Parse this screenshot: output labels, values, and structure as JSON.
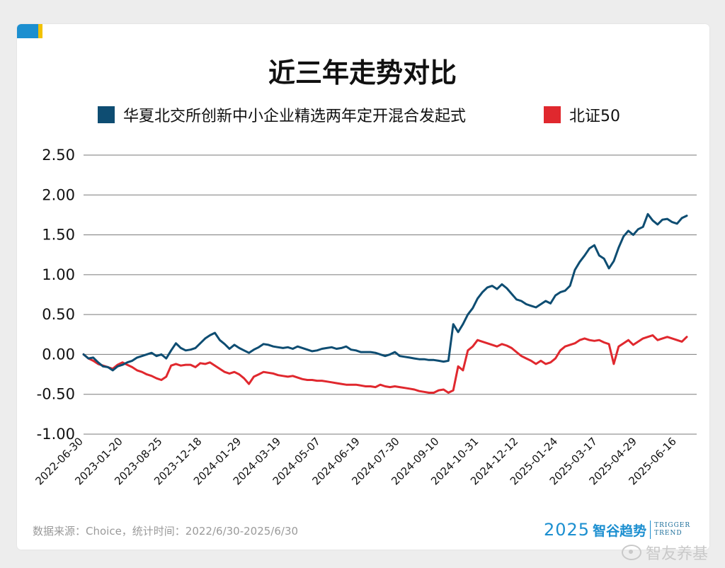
{
  "title": "近三年走势对比",
  "legend": [
    {
      "label": "华夏北交所创新中小企业精选两年定开混合发起式",
      "color": "#0e4d72"
    },
    {
      "label": "北证50",
      "color": "#e0282e"
    }
  ],
  "source": "数据来源：Choice，统计时间：2022/6/30-2025/6/30",
  "brand": {
    "year": "2025",
    "name": "智谷趋势",
    "en_line1": "TRIGGER",
    "en_line2": "TREND"
  },
  "watermark": "智友养基",
  "chart_data": {
    "type": "line",
    "title": "近三年走势对比",
    "ylim": [
      -1.0,
      2.5
    ],
    "yticks": [
      "2.50",
      "2.00",
      "1.50",
      "1.00",
      "0.50",
      "0.00",
      "-0.50",
      "-1.00"
    ],
    "ytick_values": [
      2.5,
      2.0,
      1.5,
      1.0,
      0.5,
      0.0,
      -0.5,
      -1.0
    ],
    "xticks": [
      "2022-06-30",
      "2023-01-20",
      "2023-08-25",
      "2023-12-18",
      "2024-01-29",
      "2024-03-19",
      "2024-05-07",
      "2024-06-19",
      "2024-07-30",
      "2024-09-10",
      "2024-10-31",
      "2024-12-12",
      "2025-01-24",
      "2025-03-17",
      "2025-04-29",
      "2025-06-16"
    ],
    "grid": true,
    "legend_position": "top",
    "series": [
      {
        "name": "华夏北交所创新中小企业精选两年定开混合发起式",
        "color": "#0e4d72",
        "values": [
          0.0,
          -0.05,
          -0.04,
          -0.1,
          -0.15,
          -0.16,
          -0.2,
          -0.15,
          -0.13,
          -0.1,
          -0.08,
          -0.04,
          -0.02,
          0.0,
          0.02,
          -0.02,
          0.0,
          -0.05,
          0.05,
          0.14,
          0.08,
          0.05,
          0.06,
          0.08,
          0.14,
          0.2,
          0.24,
          0.27,
          0.18,
          0.13,
          0.07,
          0.12,
          0.08,
          0.05,
          0.02,
          0.06,
          0.09,
          0.13,
          0.12,
          0.1,
          0.09,
          0.08,
          0.09,
          0.07,
          0.1,
          0.08,
          0.06,
          0.04,
          0.05,
          0.07,
          0.08,
          0.09,
          0.07,
          0.08,
          0.1,
          0.06,
          0.05,
          0.03,
          0.03,
          0.03,
          0.02,
          0.0,
          -0.02,
          0.0,
          0.03,
          -0.02,
          -0.03,
          -0.04,
          -0.05,
          -0.06,
          -0.06,
          -0.07,
          -0.07,
          -0.08,
          -0.09,
          -0.08,
          0.38,
          0.28,
          0.38,
          0.5,
          0.58,
          0.7,
          0.78,
          0.84,
          0.86,
          0.82,
          0.88,
          0.83,
          0.76,
          0.69,
          0.67,
          0.63,
          0.61,
          0.59,
          0.63,
          0.67,
          0.64,
          0.74,
          0.78,
          0.8,
          0.86,
          1.06,
          1.16,
          1.24,
          1.33,
          1.37,
          1.24,
          1.2,
          1.08,
          1.17,
          1.34,
          1.48,
          1.55,
          1.5,
          1.57,
          1.6,
          1.76,
          1.68,
          1.63,
          1.69,
          1.7,
          1.66,
          1.64,
          1.71,
          1.74
        ]
      },
      {
        "name": "北证50",
        "color": "#e0282e",
        "values": [
          0.0,
          -0.05,
          -0.08,
          -0.12,
          -0.14,
          -0.16,
          -0.18,
          -0.13,
          -0.1,
          -0.13,
          -0.16,
          -0.2,
          -0.22,
          -0.25,
          -0.27,
          -0.3,
          -0.32,
          -0.28,
          -0.14,
          -0.12,
          -0.14,
          -0.13,
          -0.13,
          -0.16,
          -0.11,
          -0.12,
          -0.1,
          -0.14,
          -0.18,
          -0.22,
          -0.24,
          -0.22,
          -0.25,
          -0.3,
          -0.37,
          -0.28,
          -0.25,
          -0.22,
          -0.23,
          -0.24,
          -0.26,
          -0.27,
          -0.28,
          -0.27,
          -0.29,
          -0.31,
          -0.32,
          -0.32,
          -0.33,
          -0.33,
          -0.34,
          -0.35,
          -0.36,
          -0.37,
          -0.38,
          -0.38,
          -0.38,
          -0.39,
          -0.4,
          -0.4,
          -0.41,
          -0.38,
          -0.4,
          -0.41,
          -0.4,
          -0.41,
          -0.42,
          -0.43,
          -0.44,
          -0.46,
          -0.47,
          -0.48,
          -0.48,
          -0.45,
          -0.44,
          -0.48,
          -0.45,
          -0.15,
          -0.2,
          0.05,
          0.1,
          0.18,
          0.16,
          0.14,
          0.12,
          0.1,
          0.13,
          0.11,
          0.08,
          0.03,
          -0.02,
          -0.05,
          -0.08,
          -0.12,
          -0.08,
          -0.12,
          -0.1,
          -0.05,
          0.05,
          0.1,
          0.12,
          0.14,
          0.18,
          0.2,
          0.18,
          0.17,
          0.18,
          0.15,
          0.13,
          -0.12,
          0.1,
          0.14,
          0.18,
          0.12,
          0.16,
          0.2,
          0.22,
          0.24,
          0.18,
          0.2,
          0.22,
          0.2,
          0.18,
          0.16,
          0.22
        ]
      }
    ]
  }
}
